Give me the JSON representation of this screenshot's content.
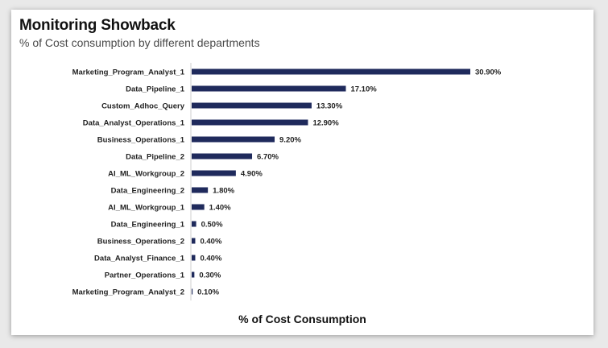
{
  "header": {
    "title": "Monitoring Showback",
    "subtitle": "% of Cost consumption by different departments"
  },
  "colors": {
    "bar": "#1f2a5c",
    "axis": "#cfcfcf",
    "label": "#222222"
  },
  "chart_data": {
    "type": "bar",
    "orientation": "horizontal",
    "title": "Monitoring Showback",
    "subtitle": "% of Cost consumption by different departments",
    "xlabel": "% of Cost Consumption",
    "ylabel": "",
    "xlim": [
      0,
      30.9
    ],
    "grid": false,
    "legend": "none",
    "categories": [
      "Marketing_Program_Analyst_1",
      "Data_Pipeline_1",
      "Custom_Adhoc_Query",
      "Data_Analyst_Operations_1",
      "Business_Operations_1",
      "Data_Pipeline_2",
      "AI_ML_Workgroup_2",
      "Data_Engineering_2",
      "AI_ML_Workgroup_1",
      "Data_Engineering_1",
      "Business_Operations_2",
      "Data_Analyst_Finance_1",
      "Partner_Operations_1",
      "Marketing_Program_Analyst_2"
    ],
    "values": [
      30.9,
      17.1,
      13.3,
      12.9,
      9.2,
      6.7,
      4.9,
      1.8,
      1.4,
      0.5,
      0.4,
      0.4,
      0.3,
      0.1
    ],
    "value_labels": [
      "30.90%",
      "17.10%",
      "13.30%",
      "12.90%",
      "9.20%",
      "6.70%",
      "4.90%",
      "1.80%",
      "1.40%",
      "0.50%",
      "0.40%",
      "0.40%",
      "0.30%",
      "0.10%"
    ]
  }
}
